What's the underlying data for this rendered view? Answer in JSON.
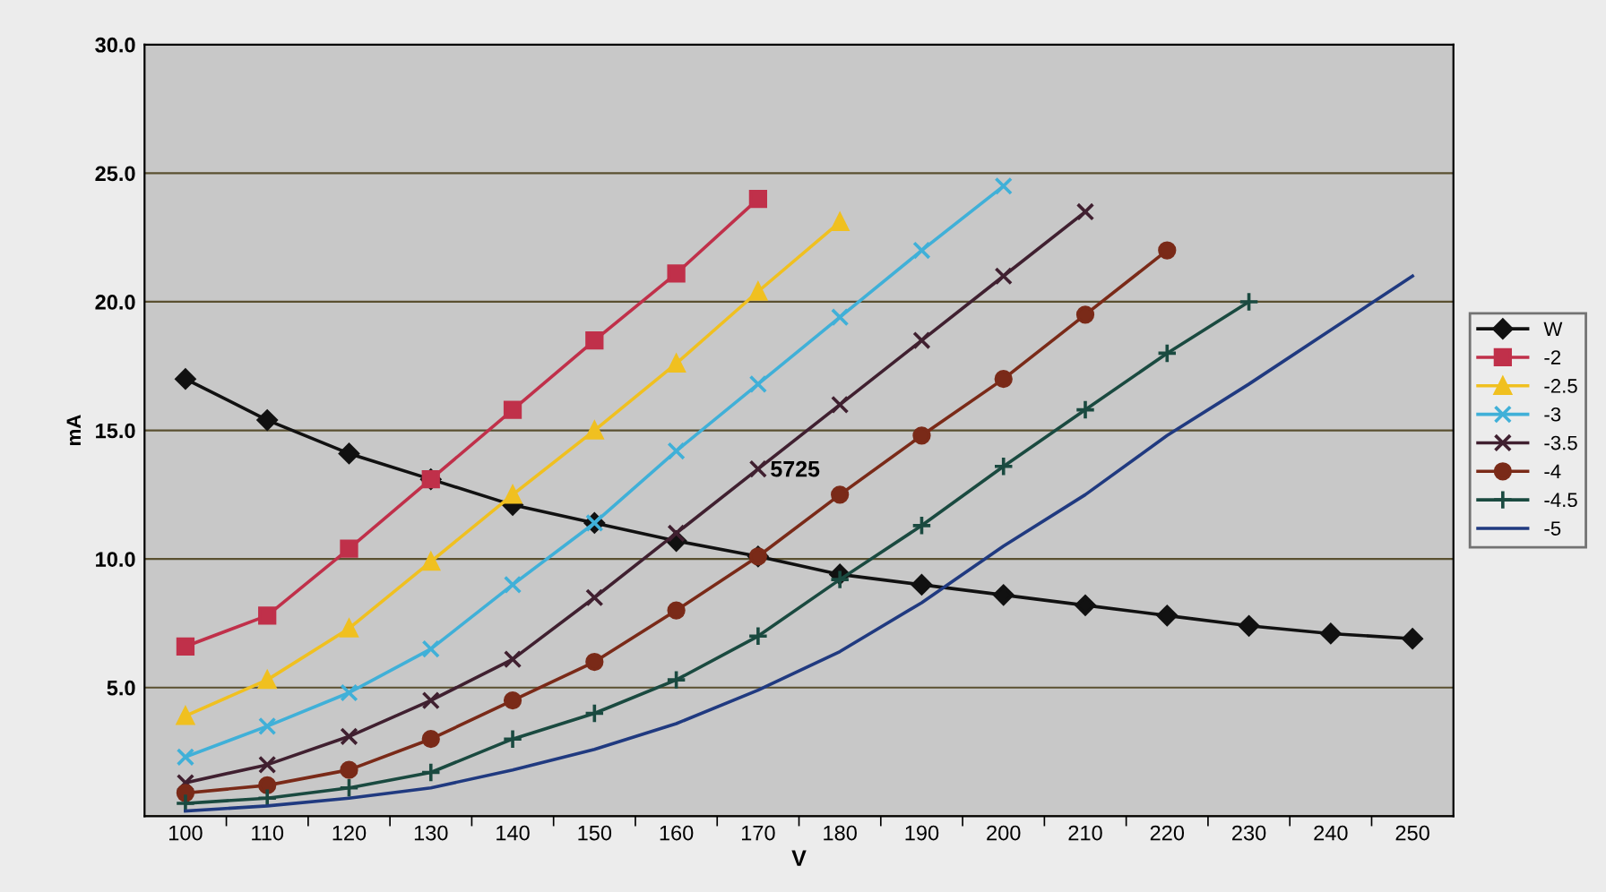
{
  "chart_data": {
    "type": "line",
    "xlabel": "V",
    "ylabel": "mA",
    "categories": [
      "100",
      "110",
      "120",
      "130",
      "140",
      "150",
      "160",
      "170",
      "180",
      "190",
      "200",
      "210",
      "220",
      "230",
      "240",
      "250"
    ],
    "series": [
      {
        "name": "W",
        "color": "#111111",
        "marker": "diamond",
        "values": [
          17.0,
          15.4,
          14.1,
          13.1,
          12.1,
          11.4,
          10.7,
          10.1,
          9.4,
          9.0,
          8.6,
          8.2,
          7.8,
          7.4,
          7.1,
          6.9
        ]
      },
      {
        "name": "-2",
        "color": "#c0304a",
        "marker": "square",
        "values": [
          6.6,
          7.8,
          10.4,
          13.1,
          15.8,
          18.5,
          21.1,
          24.0,
          null,
          null,
          null,
          null,
          null,
          null,
          null,
          null
        ]
      },
      {
        "name": "-2.5",
        "color": "#f0c020",
        "marker": "triangle",
        "values": [
          3.9,
          5.3,
          7.3,
          9.9,
          12.5,
          15.0,
          17.6,
          20.4,
          23.1,
          null,
          null,
          null,
          null,
          null,
          null,
          null
        ]
      },
      {
        "name": "-3",
        "color": "#40b0d8",
        "marker": "cross",
        "values": [
          2.3,
          3.5,
          4.8,
          6.5,
          9.0,
          11.4,
          14.2,
          16.8,
          19.4,
          22.0,
          24.5,
          null,
          null,
          null,
          null,
          null
        ]
      },
      {
        "name": "-3.5",
        "color": "#402030",
        "marker": "cross",
        "values": [
          1.3,
          2.0,
          3.1,
          4.5,
          6.1,
          8.5,
          11.0,
          13.5,
          16.0,
          18.5,
          21.0,
          23.5,
          null,
          null,
          null,
          null
        ]
      },
      {
        "name": "-4",
        "color": "#7a2a18",
        "marker": "circle",
        "values": [
          0.9,
          1.2,
          1.8,
          3.0,
          4.5,
          6.0,
          8.0,
          10.1,
          12.5,
          14.8,
          17.0,
          19.5,
          22.0,
          null,
          null,
          null
        ]
      },
      {
        "name": "-4.5",
        "color": "#1a4a40",
        "marker": "plus",
        "values": [
          0.5,
          0.7,
          1.1,
          1.7,
          3.0,
          4.0,
          5.3,
          7.0,
          9.2,
          11.3,
          13.6,
          15.8,
          18.0,
          20.0,
          null,
          null
        ]
      },
      {
        "name": "-5",
        "color": "#203a80",
        "marker": "none",
        "values": [
          0.2,
          0.4,
          0.7,
          1.1,
          1.8,
          2.6,
          3.6,
          4.9,
          6.4,
          8.3,
          10.5,
          12.5,
          14.8,
          16.8,
          18.9,
          21.0
        ]
      }
    ],
    "ylim": [
      0,
      30
    ],
    "yticks": [
      {
        "value": 0,
        "label": null
      },
      {
        "value": 5,
        "label": "5.0"
      },
      {
        "value": 10,
        "label": "10.0"
      },
      {
        "value": 15,
        "label": "15.0"
      },
      {
        "value": 20,
        "label": "20.0"
      },
      {
        "value": 25,
        "label": "25.0"
      },
      {
        "value": 30,
        "label": "30.0"
      }
    ],
    "grid": "y",
    "legend": "right",
    "line_style": "solid",
    "annotations": [
      "5725"
    ]
  }
}
